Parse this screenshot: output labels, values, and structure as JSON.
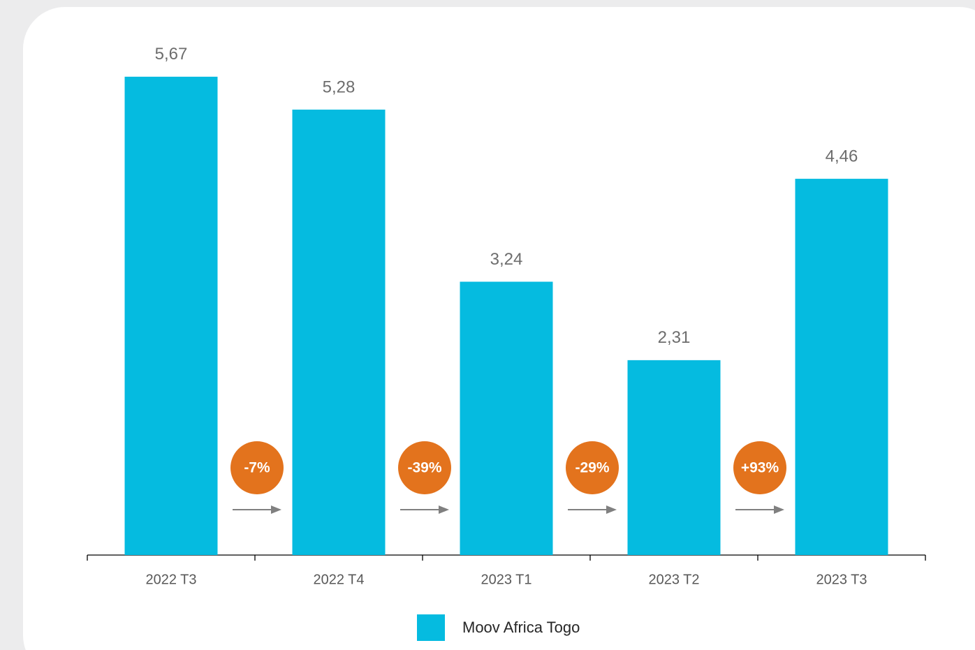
{
  "chart_data": {
    "type": "bar",
    "categories": [
      "2022 T3",
      "2022 T4",
      "2023 T1",
      "2023 T2",
      "2023 T3"
    ],
    "series": [
      {
        "name": "Moov Africa Togo",
        "color": "#05bbe0",
        "values": [
          5.67,
          5.28,
          3.24,
          2.31,
          4.46
        ],
        "value_labels": [
          "5,67",
          "5,28",
          "3,24",
          "2,31",
          "4,46"
        ]
      }
    ],
    "annotations": [
      "-7%",
      "-39%",
      "-29%",
      "+93%"
    ],
    "ylim": [
      0,
      6
    ]
  }
}
